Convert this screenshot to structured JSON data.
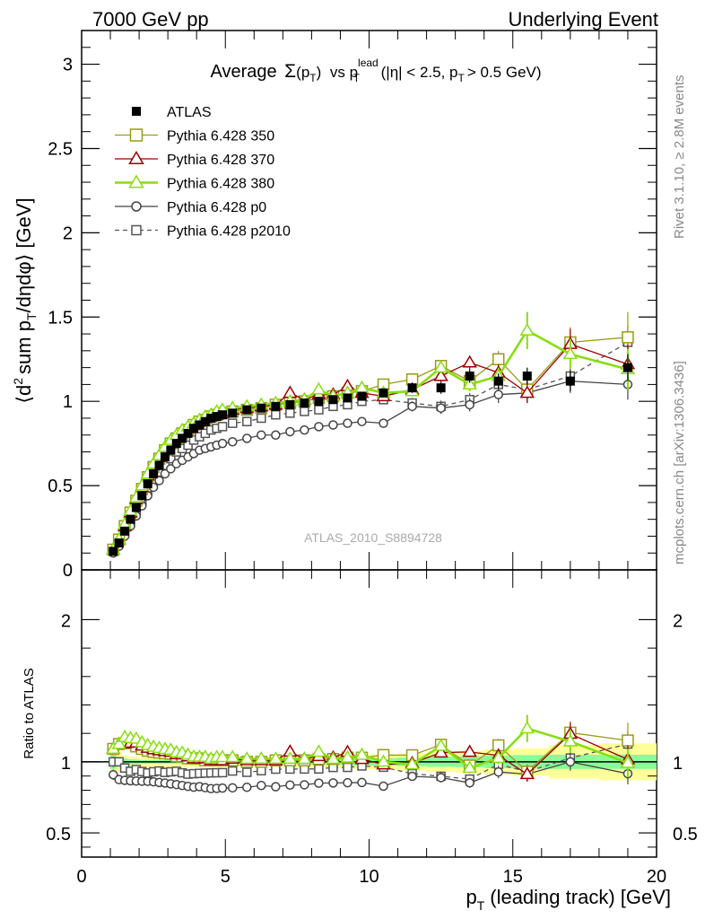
{
  "header": {
    "left": "7000 GeV pp",
    "right": "Underlying Event"
  },
  "side_labels": {
    "rivet": "Rivet 3.1.10, ≥ 2.8M events",
    "mcplots": "mcplots.cern.ch [arXiv:1306.3436]"
  },
  "watermark": "ATLAS_2010_S8894728",
  "colors": {
    "ATLAS": "#000000",
    "p350": "#9a9a1a",
    "p370": "#990000",
    "p380": "#88dd11",
    "p0": "#444444",
    "p2010": "#555555",
    "band_yellow": "#ffff99",
    "band_green": "#88ff99"
  },
  "chart_data": [
    {
      "type": "line",
      "title_parts": {
        "prefix": "Average",
        "sigma": "Σ",
        "sigma_arg": "(p",
        "sigma_sub": "T",
        "sigma_close": ")",
        "vs": "vs p",
        "lead_sup": "lead",
        "lead_sub": "T",
        "cuts_a": "(|η| < 2.5, p",
        "cuts_sub": "T",
        "cuts_b": "> 0.5 GeV)"
      },
      "ylabel_parts": {
        "a": "⟨d",
        "sup": "2",
        "b": "sum p",
        "sub": "T",
        "c": "/dηdφ⟩ [GeV]"
      },
      "xlim": [
        0,
        20
      ],
      "ylim": [
        0,
        3.2
      ],
      "x_ticks": [
        "0",
        "5",
        "10",
        "15",
        "20"
      ],
      "y_ticks": [
        "0",
        "0.5",
        "1",
        "1.5",
        "2",
        "2.5",
        "3"
      ],
      "legend_position": "top-left",
      "x": [
        1.1,
        1.3,
        1.5,
        1.7,
        1.9,
        2.1,
        2.3,
        2.5,
        2.7,
        2.9,
        3.1,
        3.3,
        3.5,
        3.7,
        3.9,
        4.1,
        4.3,
        4.5,
        4.7,
        4.9,
        5.25,
        5.75,
        6.25,
        6.75,
        7.25,
        7.75,
        8.25,
        8.75,
        9.25,
        9.75,
        10.5,
        11.5,
        12.5,
        13.5,
        14.5,
        15.5,
        17,
        19
      ],
      "series": [
        {
          "name": "ATLAS",
          "key": "ATLAS",
          "marker": "square-filled",
          "line": "none",
          "values": [
            0.11,
            0.16,
            0.23,
            0.3,
            0.37,
            0.44,
            0.51,
            0.57,
            0.62,
            0.67,
            0.71,
            0.75,
            0.78,
            0.81,
            0.84,
            0.86,
            0.88,
            0.9,
            0.91,
            0.92,
            0.93,
            0.95,
            0.96,
            0.97,
            0.98,
            0.99,
            1.0,
            1.01,
            1.02,
            1.03,
            1.05,
            1.08,
            1.08,
            1.15,
            1.12,
            1.15,
            1.12,
            1.2
          ],
          "errors": [
            0.005,
            0.005,
            0.005,
            0.005,
            0.005,
            0.005,
            0.006,
            0.006,
            0.006,
            0.006,
            0.007,
            0.007,
            0.007,
            0.008,
            0.008,
            0.008,
            0.009,
            0.009,
            0.01,
            0.01,
            0.01,
            0.012,
            0.013,
            0.014,
            0.015,
            0.016,
            0.018,
            0.02,
            0.022,
            0.024,
            0.025,
            0.03,
            0.035,
            0.04,
            0.045,
            0.05,
            0.06,
            0.08
          ]
        },
        {
          "name": "Pythia 6.428 350",
          "key": "p350",
          "marker": "square-open",
          "line": "solid",
          "values": [
            0.12,
            0.18,
            0.26,
            0.34,
            0.41,
            0.48,
            0.55,
            0.61,
            0.66,
            0.71,
            0.75,
            0.78,
            0.81,
            0.83,
            0.86,
            0.88,
            0.89,
            0.91,
            0.92,
            0.93,
            0.94,
            0.95,
            0.96,
            0.98,
            0.99,
            1.0,
            1.02,
            1.03,
            1.05,
            1.06,
            1.1,
            1.13,
            1.21,
            1.12,
            1.25,
            1.07,
            1.35,
            1.38
          ],
          "errors": [
            0.004,
            0.004,
            0.004,
            0.004,
            0.005,
            0.005,
            0.005,
            0.005,
            0.006,
            0.006,
            0.006,
            0.007,
            0.007,
            0.007,
            0.008,
            0.008,
            0.009,
            0.009,
            0.01,
            0.01,
            0.01,
            0.012,
            0.013,
            0.014,
            0.015,
            0.016,
            0.018,
            0.02,
            0.022,
            0.024,
            0.025,
            0.03,
            0.035,
            0.04,
            0.05,
            0.06,
            0.09,
            0.15
          ]
        },
        {
          "name": "Pythia 6.428 370",
          "key": "p370",
          "marker": "triangle-open",
          "line": "solid",
          "values": [
            0.12,
            0.18,
            0.26,
            0.34,
            0.42,
            0.49,
            0.56,
            0.62,
            0.67,
            0.72,
            0.76,
            0.79,
            0.82,
            0.84,
            0.86,
            0.88,
            0.9,
            0.91,
            0.92,
            0.93,
            0.95,
            0.96,
            0.97,
            0.98,
            1.05,
            1.01,
            1.04,
            1.04,
            1.09,
            1.05,
            1.03,
            1.07,
            1.15,
            1.23,
            1.17,
            1.05,
            1.34,
            1.22
          ],
          "errors": [
            0.004,
            0.004,
            0.004,
            0.004,
            0.005,
            0.005,
            0.005,
            0.005,
            0.006,
            0.006,
            0.006,
            0.007,
            0.007,
            0.007,
            0.008,
            0.008,
            0.009,
            0.009,
            0.01,
            0.01,
            0.01,
            0.012,
            0.013,
            0.014,
            0.015,
            0.016,
            0.018,
            0.02,
            0.022,
            0.024,
            0.025,
            0.03,
            0.035,
            0.04,
            0.05,
            0.06,
            0.09,
            0.12
          ]
        },
        {
          "name": "Pythia 6.428 380",
          "key": "p380",
          "marker": "triangle-open",
          "line": "solid-thick",
          "values": [
            0.12,
            0.18,
            0.27,
            0.35,
            0.43,
            0.5,
            0.57,
            0.63,
            0.68,
            0.73,
            0.77,
            0.8,
            0.83,
            0.85,
            0.87,
            0.89,
            0.91,
            0.92,
            0.94,
            0.95,
            0.96,
            0.97,
            0.98,
            0.99,
            1.0,
            1.01,
            1.07,
            1.03,
            1.05,
            1.08,
            1.05,
            1.06,
            1.2,
            1.1,
            1.15,
            1.42,
            1.28,
            1.19
          ],
          "errors": [
            0.004,
            0.004,
            0.004,
            0.004,
            0.005,
            0.005,
            0.005,
            0.005,
            0.006,
            0.006,
            0.006,
            0.007,
            0.007,
            0.007,
            0.008,
            0.008,
            0.009,
            0.009,
            0.01,
            0.01,
            0.01,
            0.012,
            0.013,
            0.014,
            0.015,
            0.016,
            0.018,
            0.02,
            0.022,
            0.024,
            0.025,
            0.03,
            0.035,
            0.04,
            0.05,
            0.11,
            0.09,
            0.12
          ]
        },
        {
          "name": "Pythia 6.428 p0",
          "key": "p0",
          "marker": "circle-open",
          "line": "solid",
          "values": [
            0.1,
            0.14,
            0.2,
            0.26,
            0.32,
            0.38,
            0.44,
            0.49,
            0.53,
            0.57,
            0.6,
            0.63,
            0.65,
            0.67,
            0.69,
            0.71,
            0.72,
            0.73,
            0.74,
            0.75,
            0.76,
            0.78,
            0.8,
            0.8,
            0.82,
            0.83,
            0.85,
            0.86,
            0.87,
            0.88,
            0.87,
            0.97,
            0.96,
            0.98,
            1.04,
            1.05,
            1.12,
            1.1
          ],
          "errors": [
            0.004,
            0.004,
            0.004,
            0.004,
            0.005,
            0.005,
            0.005,
            0.005,
            0.006,
            0.006,
            0.006,
            0.007,
            0.007,
            0.007,
            0.008,
            0.008,
            0.009,
            0.009,
            0.01,
            0.01,
            0.01,
            0.012,
            0.013,
            0.014,
            0.015,
            0.016,
            0.018,
            0.02,
            0.022,
            0.024,
            0.025,
            0.03,
            0.035,
            0.04,
            0.05,
            0.06,
            0.07,
            0.09
          ]
        },
        {
          "name": "Pythia 6.428 p2010",
          "key": "p2010",
          "marker": "square-open-small",
          "line": "dashed",
          "values": [
            0.11,
            0.16,
            0.22,
            0.28,
            0.35,
            0.41,
            0.47,
            0.53,
            0.58,
            0.62,
            0.66,
            0.7,
            0.72,
            0.74,
            0.77,
            0.79,
            0.81,
            0.83,
            0.84,
            0.85,
            0.87,
            0.88,
            0.9,
            0.92,
            0.93,
            0.94,
            0.95,
            0.97,
            0.98,
            1.0,
            1.01,
            0.99,
            0.97,
            1.01,
            1.1,
            1.07,
            1.15,
            1.35
          ],
          "errors": [
            0.004,
            0.004,
            0.004,
            0.004,
            0.005,
            0.005,
            0.005,
            0.005,
            0.006,
            0.006,
            0.006,
            0.007,
            0.007,
            0.007,
            0.008,
            0.008,
            0.009,
            0.009,
            0.01,
            0.01,
            0.01,
            0.012,
            0.013,
            0.014,
            0.015,
            0.016,
            0.018,
            0.02,
            0.022,
            0.024,
            0.025,
            0.03,
            0.035,
            0.04,
            0.05,
            0.06,
            0.07,
            0.1
          ]
        }
      ]
    },
    {
      "type": "line",
      "ylabel": "Ratio to ATLAS",
      "xlabel_parts": {
        "a": "p",
        "sub": "T",
        "b": "(leading track) [GeV]"
      },
      "xlim": [
        0,
        20
      ],
      "ylim": [
        0.33,
        2.35
      ],
      "y_ticks": [
        "0.5",
        "1",
        "2"
      ],
      "reference": "ATLAS"
    }
  ]
}
